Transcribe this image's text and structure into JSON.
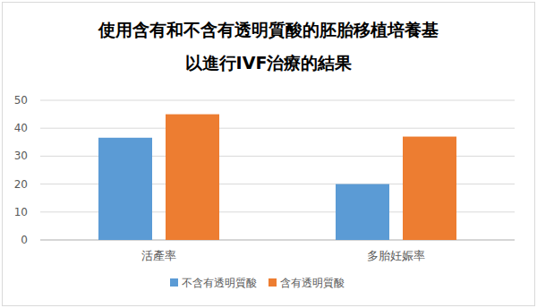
{
  "chart_data": {
    "type": "bar",
    "title": [
      "使用含有和不含有透明質酸的胚胎移植培養基",
      "以進行IVF治療的結果"
    ],
    "categories": [
      "活產率",
      "多胎妊娠率"
    ],
    "series": [
      {
        "name": "不含有透明質酸",
        "color": "#5b9bd5",
        "values": [
          36.6,
          20
        ]
      },
      {
        "name": "含有透明質酸",
        "color": "#ed7d31",
        "values": [
          45,
          37
        ]
      }
    ],
    "ylim": [
      0,
      50
    ],
    "yticks": [
      0,
      10,
      20,
      30,
      40,
      50
    ],
    "grid": true,
    "legend": "bottom"
  }
}
